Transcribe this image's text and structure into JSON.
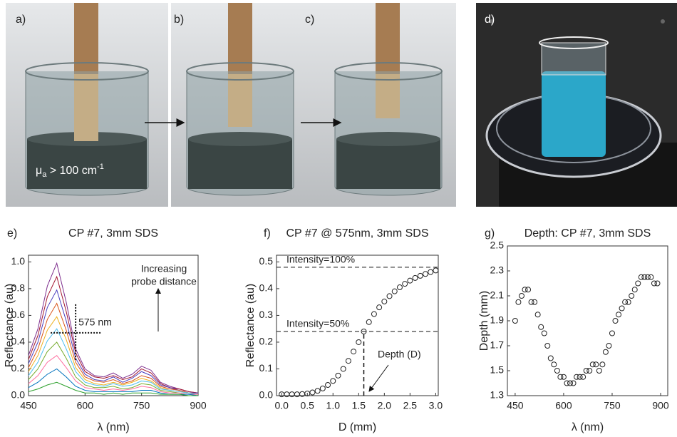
{
  "panel_labels": [
    "a)",
    "b)",
    "c)",
    "d)"
  ],
  "mu_label": {
    "symbol": "μ",
    "sub": "a",
    "text": " > 100 cm",
    "sup": "-1"
  },
  "chart_data": [
    {
      "type": "line",
      "panel_label": "e)",
      "title": "CP #7, 3mm SDS",
      "xlabel": "λ (nm)",
      "ylabel": "Reflectance (au)",
      "x": [
        450,
        475,
        500,
        525,
        550,
        575,
        600,
        625,
        650,
        675,
        700,
        725,
        750,
        775,
        800,
        825,
        850,
        875,
        900
      ],
      "series": [
        {
          "color": "#7e2f8e",
          "values": [
            0.3,
            0.5,
            0.82,
            0.99,
            0.7,
            0.35,
            0.2,
            0.15,
            0.14,
            0.17,
            0.13,
            0.16,
            0.22,
            0.19,
            0.1,
            0.07,
            0.05,
            0.03,
            0.02
          ]
        },
        {
          "color": "#a2142f",
          "values": [
            0.27,
            0.45,
            0.74,
            0.89,
            0.63,
            0.32,
            0.18,
            0.14,
            0.13,
            0.15,
            0.12,
            0.14,
            0.2,
            0.17,
            0.09,
            0.06,
            0.05,
            0.03,
            0.02
          ]
        },
        {
          "color": "#4b3fbf",
          "values": [
            0.24,
            0.4,
            0.66,
            0.79,
            0.56,
            0.28,
            0.16,
            0.12,
            0.11,
            0.14,
            0.1,
            0.13,
            0.18,
            0.15,
            0.08,
            0.06,
            0.04,
            0.02,
            0.02
          ]
        },
        {
          "color": "#d95319",
          "values": [
            0.21,
            0.35,
            0.57,
            0.69,
            0.49,
            0.25,
            0.14,
            0.11,
            0.1,
            0.12,
            0.09,
            0.11,
            0.15,
            0.13,
            0.07,
            0.05,
            0.04,
            0.02,
            0.01
          ]
        },
        {
          "color": "#edb120",
          "values": [
            0.18,
            0.3,
            0.49,
            0.59,
            0.42,
            0.21,
            0.12,
            0.09,
            0.08,
            0.1,
            0.08,
            0.1,
            0.13,
            0.11,
            0.06,
            0.04,
            0.03,
            0.02,
            0.01
          ]
        },
        {
          "color": "#4dbeee",
          "values": [
            0.15,
            0.25,
            0.41,
            0.5,
            0.35,
            0.18,
            0.1,
            0.08,
            0.07,
            0.09,
            0.07,
            0.08,
            0.11,
            0.1,
            0.05,
            0.04,
            0.03,
            0.02,
            0.01
          ]
        },
        {
          "color": "#77ac30",
          "values": [
            0.12,
            0.2,
            0.33,
            0.4,
            0.28,
            0.14,
            0.08,
            0.06,
            0.06,
            0.07,
            0.05,
            0.06,
            0.09,
            0.08,
            0.04,
            0.03,
            0.02,
            0.01,
            0.01
          ]
        },
        {
          "color": "#ff6f9f",
          "values": [
            0.09,
            0.15,
            0.25,
            0.3,
            0.21,
            0.11,
            0.06,
            0.05,
            0.04,
            0.05,
            0.04,
            0.05,
            0.07,
            0.06,
            0.03,
            0.02,
            0.02,
            0.01,
            0.01
          ]
        },
        {
          "color": "#0072bd",
          "values": [
            0.06,
            0.1,
            0.16,
            0.2,
            0.14,
            0.07,
            0.04,
            0.03,
            0.03,
            0.03,
            0.03,
            0.03,
            0.04,
            0.04,
            0.02,
            0.01,
            0.01,
            0.01,
            0
          ]
        },
        {
          "color": "#2ca02c",
          "values": [
            0.03,
            0.05,
            0.08,
            0.1,
            0.07,
            0.04,
            0.02,
            0.02,
            0.01,
            0.02,
            0.01,
            0.02,
            0.02,
            0.02,
            0.01,
            0.01,
            0.01,
            0,
            0
          ]
        }
      ],
      "xlim": [
        450,
        900
      ],
      "xticks": [
        450,
        600,
        750,
        900
      ],
      "ylim": [
        0,
        1.05
      ],
      "yticks": [
        {
          "value": 0,
          "label": "0.0"
        },
        0.2,
        0.4,
        0.6,
        0.8,
        {
          "value": 1,
          "label": "1.0"
        }
      ],
      "crosshair": {
        "x": 575,
        "y": 0.47,
        "label": "575 nm"
      },
      "annotation": [
        "Increasing",
        "probe distance"
      ]
    },
    {
      "type": "scatter",
      "panel_label": "f)",
      "title": "CP #7 @ 575nm, 3mm SDS",
      "xlabel": "D (mm)",
      "ylabel": "Reflectance (au)",
      "x": [
        0,
        0.1,
        0.2,
        0.3,
        0.4,
        0.5,
        0.6,
        0.7,
        0.8,
        0.9,
        1.0,
        1.1,
        1.2,
        1.3,
        1.4,
        1.5,
        1.6,
        1.7,
        1.8,
        1.9,
        2.0,
        2.1,
        2.2,
        2.3,
        2.4,
        2.5,
        2.6,
        2.7,
        2.8,
        2.9,
        3.0
      ],
      "values": [
        0.005,
        0.005,
        0.005,
        0.005,
        0.006,
        0.008,
        0.012,
        0.018,
        0.027,
        0.04,
        0.055,
        0.075,
        0.1,
        0.13,
        0.165,
        0.2,
        0.24,
        0.275,
        0.305,
        0.33,
        0.352,
        0.372,
        0.39,
        0.405,
        0.418,
        0.43,
        0.44,
        0.448,
        0.455,
        0.462,
        0.468
      ],
      "xlim": [
        -0.1,
        3.05
      ],
      "xticks": [
        {
          "value": 0,
          "label": "0.0"
        },
        0.5,
        {
          "value": 1,
          "label": "1.0"
        },
        1.5,
        {
          "value": 2,
          "label": "2.0"
        },
        2.5,
        {
          "value": 3,
          "label": "3.0"
        }
      ],
      "ylim": [
        0,
        0.525
      ],
      "yticks": [
        {
          "value": 0,
          "label": "0.0"
        },
        0.1,
        0.2,
        0.3,
        0.4,
        0.5
      ],
      "hlines": [
        {
          "y": 0.48,
          "label": "Intensity=100%"
        },
        {
          "y": 0.24,
          "label": "Intensity=50%"
        }
      ],
      "vline_x": 1.6,
      "annotation": "Depth (D)"
    },
    {
      "type": "scatter",
      "panel_label": "g)",
      "title": "Depth: CP #7, 3mm SDS",
      "xlabel": "λ (nm)",
      "ylabel": "Depth (mm)",
      "x": [
        450,
        460,
        470,
        480,
        490,
        500,
        510,
        520,
        530,
        540,
        550,
        560,
        570,
        580,
        590,
        600,
        610,
        620,
        630,
        640,
        650,
        660,
        670,
        680,
        690,
        700,
        710,
        720,
        730,
        740,
        750,
        760,
        770,
        780,
        790,
        800,
        810,
        820,
        830,
        840,
        850,
        860,
        870,
        880,
        890
      ],
      "values": [
        1.9,
        2.05,
        2.1,
        2.15,
        2.15,
        2.05,
        2.05,
        1.95,
        1.85,
        1.8,
        1.7,
        1.6,
        1.55,
        1.5,
        1.45,
        1.45,
        1.4,
        1.4,
        1.4,
        1.45,
        1.45,
        1.45,
        1.5,
        1.5,
        1.55,
        1.55,
        1.5,
        1.55,
        1.65,
        1.7,
        1.8,
        1.9,
        1.95,
        2.0,
        2.05,
        2.05,
        2.1,
        2.15,
        2.2,
        2.25,
        2.25,
        2.25,
        2.25,
        2.2,
        2.2
      ],
      "xlim": [
        426,
        922
      ],
      "xticks": [
        450,
        600,
        750,
        900
      ],
      "ylim": [
        1.3,
        2.5
      ],
      "yticks": [
        1.3,
        1.5,
        1.7,
        1.9,
        2.1,
        2.3,
        2.5
      ]
    }
  ]
}
